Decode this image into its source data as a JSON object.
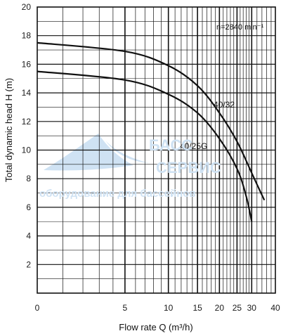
{
  "chart_data": {
    "type": "line",
    "xlabel": "Flow rate   Q (m³/h)",
    "ylabel": "Total dynamic head   H (m)",
    "x_ticks": [
      0,
      5,
      10,
      15,
      20,
      25,
      30,
      40
    ],
    "y_ticks": [
      2,
      4,
      6,
      8,
      10,
      12,
      14,
      16,
      18,
      20
    ],
    "speed_annotation": "n=2840 min⁻¹",
    "grid": true,
    "series": [
      {
        "name": "40/32",
        "x": [
          0,
          5,
          10,
          15,
          20,
          25,
          30,
          32,
          35
        ],
        "y": [
          17.5,
          16.9,
          15.9,
          14.5,
          12.6,
          10.6,
          8.4,
          7.6,
          6.5
        ]
      },
      {
        "name": "40/25G",
        "x": [
          0,
          5,
          10,
          15,
          20,
          25,
          28,
          30
        ],
        "y": [
          15.5,
          14.9,
          13.9,
          12.6,
          10.8,
          8.7,
          6.8,
          5.0
        ]
      }
    ]
  },
  "watermark": {
    "text1": "БАСС",
    "text2": "СЕРВИС",
    "text3": "оборудование для бассейнов",
    "color": "#cfe2f3"
  },
  "colors": {
    "curve": "#111111",
    "grid": "#111111",
    "background": "#ffffff"
  }
}
